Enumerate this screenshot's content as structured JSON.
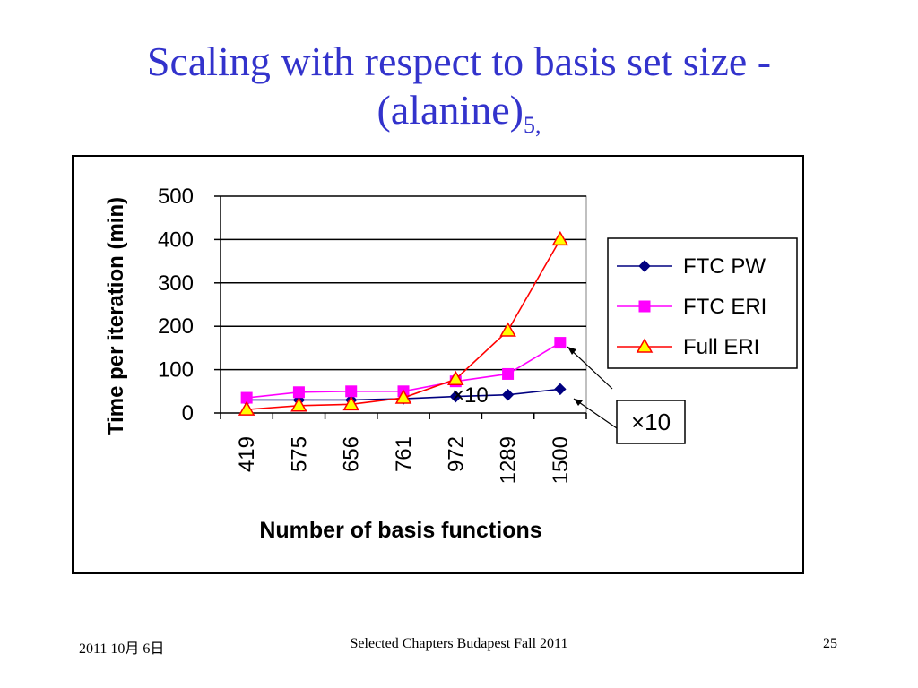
{
  "slide": {
    "title_main": "Scaling with respect to basis set size - (alanine)",
    "title_subscript": "5,",
    "footer_date": "2011   10月   6日",
    "footer_center": "Selected Chapters Budapest Fall 2011",
    "footer_page": "25"
  },
  "chart_data": {
    "type": "line",
    "xlabel": "Number of basis functions",
    "ylabel": "Time per iteration (min)",
    "categories": [
      "419",
      "575",
      "656",
      "761",
      "972",
      "1289",
      "1500"
    ],
    "ylim": [
      0,
      500
    ],
    "yticks": [
      "500",
      "400",
      "300",
      "200",
      "100",
      "0"
    ],
    "grid": true,
    "legend": "right",
    "series": [
      {
        "name": "FTC PW",
        "values": [
          30,
          30,
          30,
          33,
          38,
          42,
          55
        ],
        "color": "#000080",
        "marker": "diamond",
        "fill": "#000080"
      },
      {
        "name": "FTC ERI",
        "values": [
          35,
          48,
          50,
          50,
          73,
          90,
          162
        ],
        "color": "#ff00ff",
        "marker": "square",
        "fill": "#ff00ff"
      },
      {
        "name": "Full ERI",
        "values": [
          8,
          17,
          20,
          35,
          78,
          190,
          400
        ],
        "color": "#ff0000",
        "marker": "triangle",
        "fill": "#ffff00"
      }
    ],
    "annotations": {
      "inline_label": "×10",
      "boxed_label": "×10"
    }
  }
}
